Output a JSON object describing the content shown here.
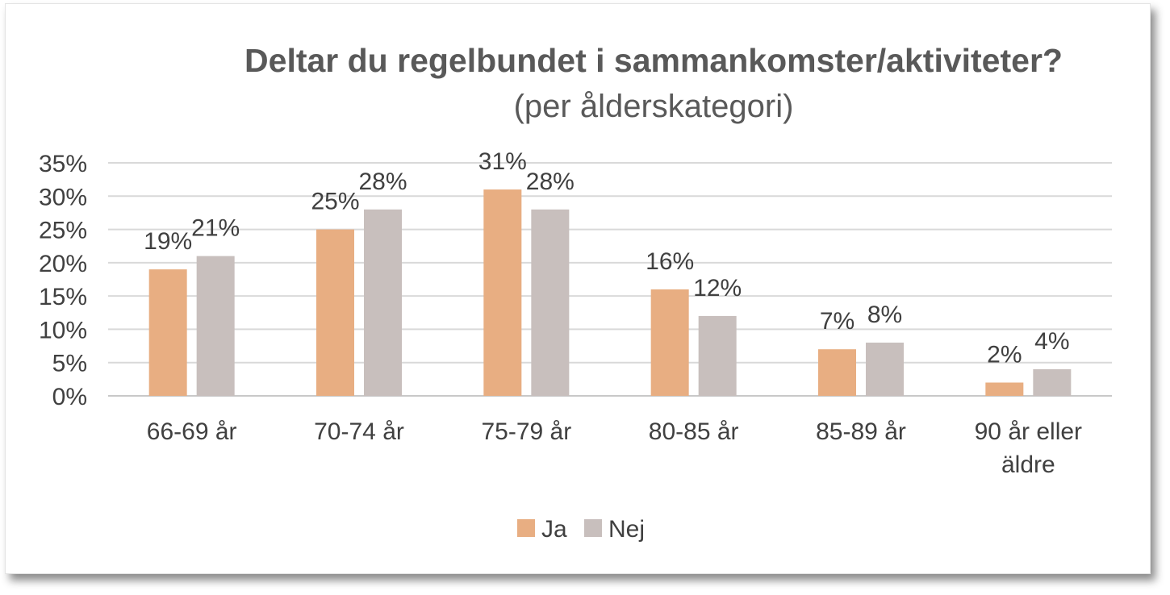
{
  "chart_data": {
    "type": "bar",
    "title": "Deltar du regelbundet i sammankomster/aktiviteter?",
    "subtitle": "(per ålderskategori)",
    "categories": [
      "66-69 år",
      "70-74 år",
      "75-79 år",
      "80-85 år",
      "85-89 år",
      "90 år eller äldre"
    ],
    "category_lines": [
      [
        "66-69 år"
      ],
      [
        "70-74 år"
      ],
      [
        "75-79 år"
      ],
      [
        "80-85 år"
      ],
      [
        "85-89 år"
      ],
      [
        "90 år eller",
        "äldre"
      ]
    ],
    "series": [
      {
        "name": "Ja",
        "color": "#E8AE82",
        "values": [
          19,
          25,
          31,
          16,
          7,
          2
        ],
        "labels": [
          "19%",
          "25%",
          "31%",
          "16%",
          "7%",
          "2%"
        ]
      },
      {
        "name": "Nej",
        "color": "#C8BFBD",
        "values": [
          21,
          28,
          28,
          12,
          8,
          4
        ],
        "labels": [
          "21%",
          "28%",
          "28%",
          "12%",
          "8%",
          "4%"
        ]
      }
    ],
    "yticks": [
      "0%",
      "5%",
      "10%",
      "15%",
      "20%",
      "25%",
      "30%",
      "35%"
    ],
    "ylim": [
      0,
      35
    ],
    "grid": true,
    "legend": "bottom-center",
    "xlabel": "",
    "ylabel": ""
  }
}
